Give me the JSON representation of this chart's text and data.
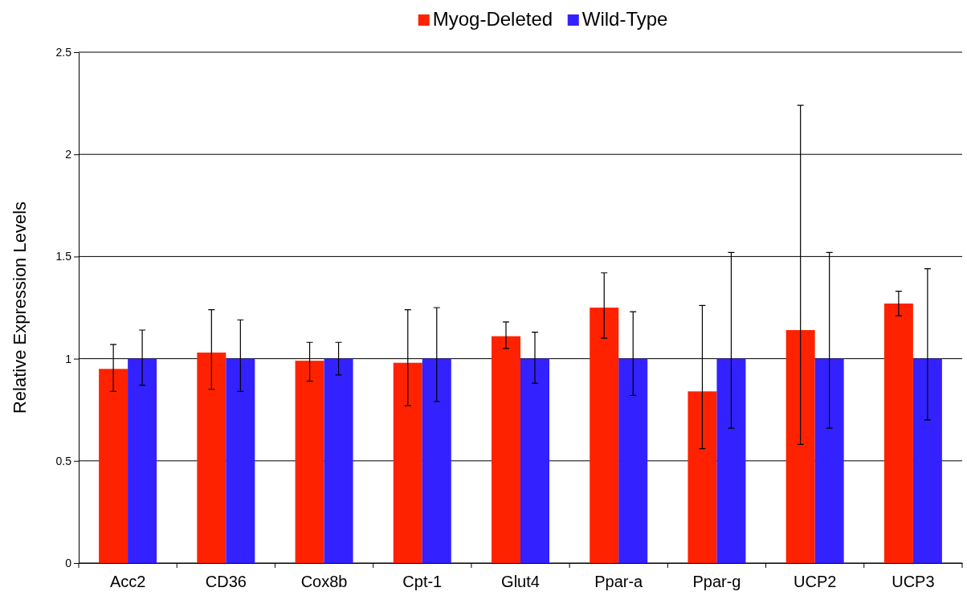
{
  "chart_data": {
    "type": "bar",
    "ylabel": "Relative Expression Levels",
    "categories": [
      "Acc2",
      "CD36",
      "Cox8b",
      "Cpt-1",
      "Glut4",
      "Ppar-a",
      "Ppar-g",
      "UCP2",
      "UCP3"
    ],
    "series": [
      {
        "name": "Myog-Deleted",
        "color": "#ff2200",
        "values": [
          0.95,
          1.03,
          0.99,
          0.98,
          1.11,
          1.25,
          0.84,
          1.14,
          1.27
        ],
        "errors": [
          [
            0.84,
            1.07
          ],
          [
            0.85,
            1.24
          ],
          [
            0.89,
            1.08
          ],
          [
            0.77,
            1.24
          ],
          [
            1.05,
            1.18
          ],
          [
            1.1,
            1.42
          ],
          [
            0.56,
            1.26
          ],
          [
            0.58,
            2.24
          ],
          [
            1.21,
            1.33
          ]
        ]
      },
      {
        "name": "Wild-Type",
        "color": "#3322ff",
        "values": [
          1,
          1,
          1,
          1,
          1,
          1,
          1,
          1,
          1
        ],
        "errors": [
          [
            0.87,
            1.14
          ],
          [
            0.84,
            1.19
          ],
          [
            0.92,
            1.08
          ],
          [
            0.79,
            1.25
          ],
          [
            0.88,
            1.13
          ],
          [
            0.82,
            1.23
          ],
          [
            0.66,
            1.52
          ],
          [
            0.66,
            1.52
          ],
          [
            0.7,
            1.44
          ]
        ]
      }
    ],
    "ylim": [
      0,
      2.5
    ],
    "yticks": [
      0,
      0.5,
      1,
      1.5,
      2,
      2.5
    ],
    "grid": "y",
    "legend": "top"
  }
}
